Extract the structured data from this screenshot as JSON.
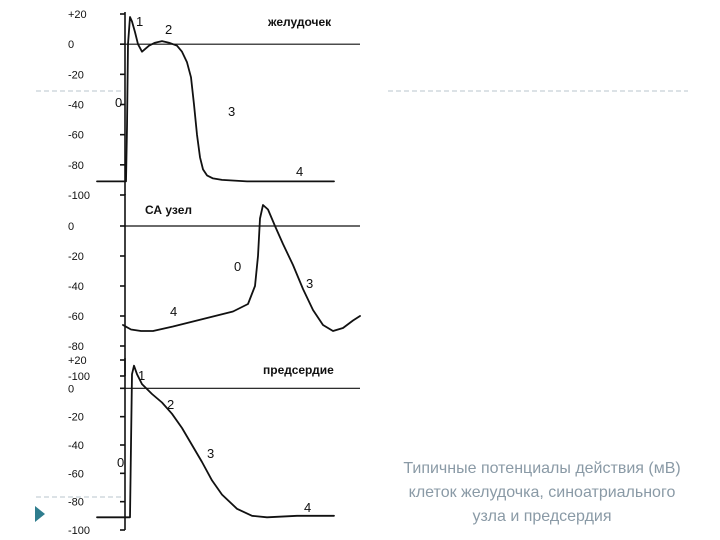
{
  "chart_data": [
    {
      "type": "line",
      "title": "желудочек",
      "ylim": [
        -100,
        20
      ],
      "yticks": [
        "+20",
        "0",
        "-20",
        "-40",
        "-60",
        "-80",
        "-100"
      ],
      "yticks_values": [
        20,
        0,
        -20,
        -40,
        -60,
        -80,
        -100
      ],
      "zero_line": true,
      "phase_labels": [
        "1",
        "2",
        "0",
        "3",
        "4"
      ],
      "series": [
        {
          "x": [
            0,
            29,
            30,
            31,
            33,
            35,
            38,
            41,
            45,
            52,
            58,
            65,
            72,
            80,
            85,
            90,
            94,
            97,
            100,
            103,
            106,
            110,
            116,
            125,
            150,
            190,
            237
          ],
          "y": [
            -91,
            -91,
            -55,
            0,
            18,
            15,
            8,
            0,
            -5,
            -1,
            1,
            2,
            1,
            -1,
            -5,
            -12,
            -22,
            -40,
            -60,
            -75,
            -83,
            -87,
            -89,
            -90,
            -91,
            -91,
            -91
          ]
        }
      ]
    },
    {
      "type": "line",
      "title": "СА узел",
      "ylim": [
        -100,
        20
      ],
      "yticks": [
        "0",
        "-20",
        "-40",
        "-60",
        "-80",
        "-100"
      ],
      "yticks_values": [
        0,
        -20,
        -40,
        -60,
        -80,
        -100
      ],
      "zero_line": true,
      "phase_labels": [
        "0",
        "4",
        "3"
      ],
      "series": [
        {
          "x": [
            0,
            8,
            18,
            30,
            50,
            80,
            110,
            125,
            132,
            135,
            137,
            140,
            145,
            152,
            160,
            170,
            180,
            190,
            200,
            210,
            220,
            230,
            237
          ],
          "y": [
            -66,
            -69,
            -70,
            -70,
            -67,
            -62,
            -57,
            -52,
            -40,
            -20,
            5,
            14,
            11,
            0,
            -12,
            -26,
            -42,
            -56,
            -66,
            -70,
            -68,
            -63,
            -60
          ]
        }
      ]
    },
    {
      "type": "line",
      "title": "предсердие",
      "ylim": [
        -100,
        20
      ],
      "yticks": [
        "+20",
        "0",
        "-20",
        "-40",
        "-60",
        "-80",
        "-100"
      ],
      "yticks_values": [
        20,
        0,
        -20,
        -40,
        -60,
        -80,
        -100
      ],
      "zero_line": true,
      "phase_labels": [
        "1",
        "2",
        "0",
        "3",
        "4"
      ],
      "series": [
        {
          "x": [
            0,
            33,
            34,
            35,
            37,
            40,
            45,
            55,
            65,
            75,
            85,
            95,
            105,
            115,
            125,
            140,
            155,
            170,
            200,
            237
          ],
          "y": [
            -91,
            -91,
            -40,
            10,
            16,
            10,
            3,
            -4,
            -10,
            -18,
            -28,
            -40,
            -52,
            -65,
            -75,
            -85,
            -90,
            -91,
            -90,
            -90
          ]
        }
      ]
    }
  ],
  "caption": [
    "Типичные потенциалы действия (мВ)",
    "клеток желудочка, синоатриального",
    "узла и предсердия"
  ],
  "colors": {
    "ink": "#111111",
    "caption": "#8a9aa6",
    "decor": "#b8c4cc",
    "bullet": "#2f7d8e"
  }
}
